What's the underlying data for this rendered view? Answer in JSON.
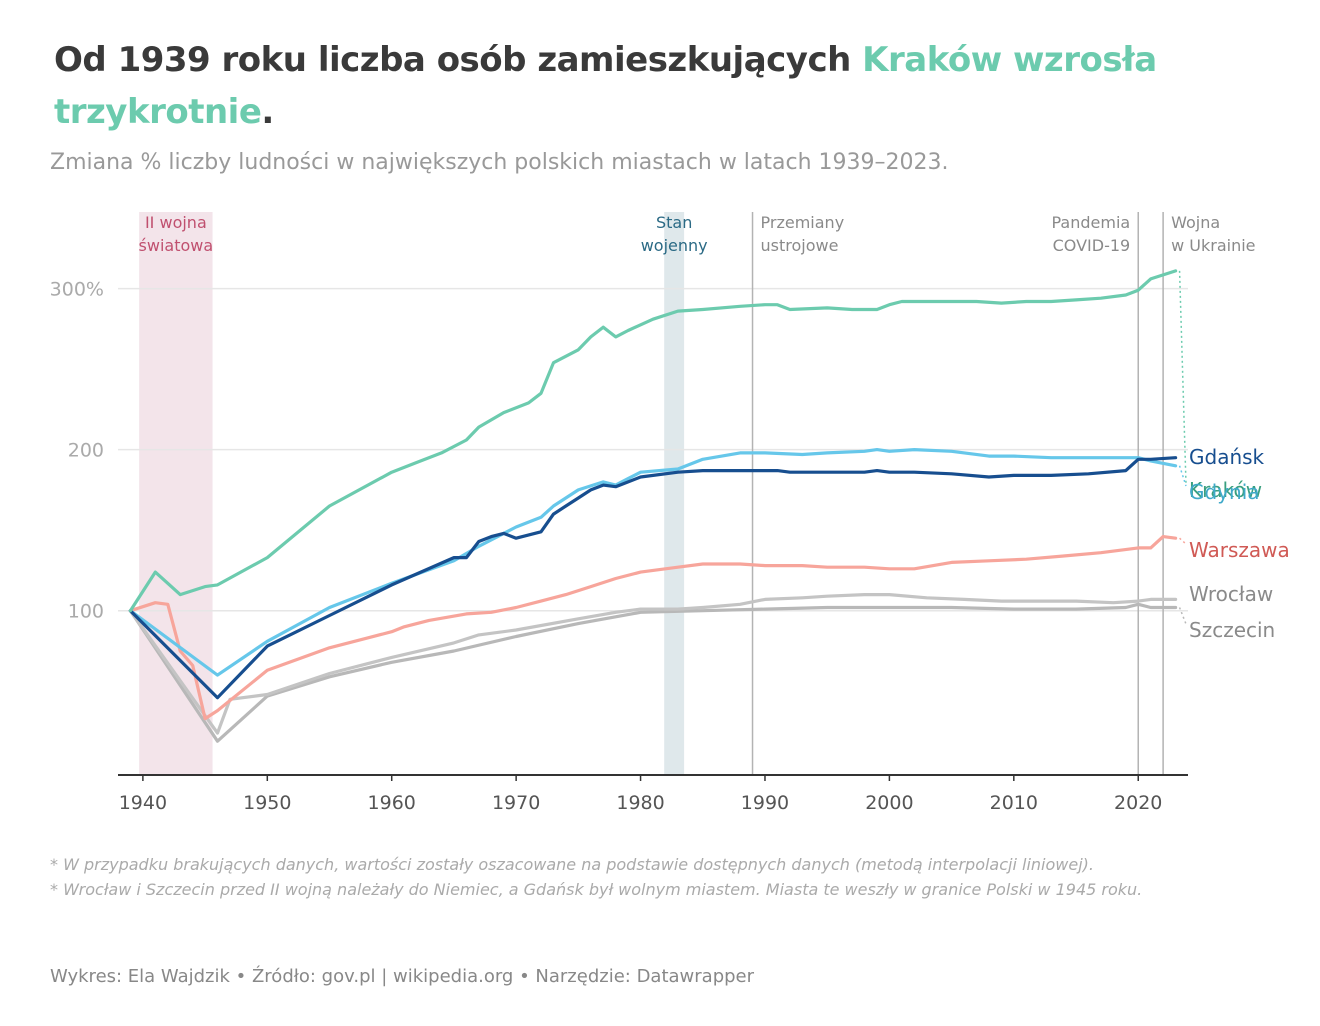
{
  "title": {
    "part1": "Od 1939 roku liczba osób zamieszkujących ",
    "highlight": "Kraków wzrosła trzykrotnie",
    "part2": "."
  },
  "subtitle": "Zmiana % liczby ludności w największych polskich miastach w latach 1939–2023.",
  "notes": [
    "* W przypadku brakujących danych, wartości zostały oszacowane na podstawie dostępnych danych (metodą interpolacji liniowej).",
    "* Wrocław i Szczecin przed II wojną należały do Niemiec, a Gdańsk był wolnym miastem. Miasta te weszły w granice Polski w 1945 roku."
  ],
  "credits": "Wykres: Ela Wajdzik • Źródło: gov.pl | wikipedia.org • Narzędzie: Datawrapper",
  "colors": {
    "krakow": "#6ccbae",
    "gdansk": "#174e8f",
    "gdynia": "#66c7ea",
    "warszawa": "#f7a59b",
    "wroclaw": "#c4c4c4",
    "szczecin": "#b8b8b8",
    "war_band": "#f3e4ea",
    "martial_band": "#dfe8eb"
  },
  "chart_data": {
    "type": "line",
    "xlim": [
      1938,
      2024
    ],
    "ylim": [
      -2,
      355
    ],
    "x_ticks": [
      1940,
      1950,
      1960,
      1970,
      1980,
      1990,
      2000,
      2010,
      2020
    ],
    "x_tick_labels": [
      "1940",
      "1950",
      "1960",
      "1970",
      "1980",
      "1990",
      "2000",
      "2010",
      "2020"
    ],
    "y_ticks": [
      100,
      200,
      300
    ],
    "y_tick_labels": [
      "100",
      "200",
      "300%"
    ],
    "grid": true,
    "annotations": {
      "ranges": [
        {
          "from": 1939.7,
          "to": 1945.6,
          "label": [
            "II wojna",
            "światowa"
          ],
          "color": "#c0506f"
        },
        {
          "from": 1981.9,
          "to": 1983.5,
          "label": [
            "Stan",
            "wojenny"
          ],
          "color": "#2b6a85"
        }
      ],
      "lines": [
        {
          "x": 1989,
          "label": [
            "Przemiany",
            "ustrojowe"
          ]
        },
        {
          "x": 2020,
          "label": [
            "Pandemia",
            "COVID-19"
          ]
        },
        {
          "x": 2022,
          "label": [
            "Wojna",
            "w Ukrainie"
          ]
        }
      ]
    },
    "series": [
      {
        "name": "Kraków",
        "key": "krakow",
        "x": [
          1939,
          1941,
          1943,
          1945,
          1946,
          1950,
          1955,
          1960,
          1962,
          1964,
          1966,
          1967,
          1969,
          1971,
          1972,
          1973,
          1975,
          1976,
          1977,
          1978,
          1979,
          1981,
          1983,
          1985,
          1988,
          1990,
          1991,
          1992,
          1995,
          1997,
          1999,
          2000,
          2001,
          2003,
          2005,
          2007,
          2009,
          2011,
          2013,
          2015,
          2017,
          2019,
          2020,
          2021,
          2023
        ],
        "y": [
          100,
          124,
          110,
          115,
          116,
          133,
          165,
          186,
          192,
          198,
          206,
          214,
          223,
          229,
          235,
          254,
          262,
          270,
          276,
          270,
          274,
          281,
          286,
          287,
          289,
          290,
          290,
          287,
          288,
          287,
          287,
          290,
          292,
          292,
          292,
          292,
          291,
          292,
          292,
          293,
          294,
          296,
          299,
          306,
          311
        ]
      },
      {
        "name": "Gdańsk",
        "key": "gdansk",
        "x": [
          1939,
          1946,
          1950,
          1955,
          1960,
          1965,
          1966,
          1967,
          1968,
          1969,
          1970,
          1972,
          1973,
          1974,
          1975,
          1976,
          1977,
          1978,
          1980,
          1983,
          1985,
          1988,
          1990,
          1991,
          1992,
          1995,
          1998,
          1999,
          2000,
          2002,
          2005,
          2008,
          2010,
          2013,
          2016,
          2019,
          2020,
          2021,
          2023
        ],
        "y": [
          100,
          46,
          78,
          97,
          116,
          133,
          133,
          143,
          146,
          148,
          145,
          149,
          160,
          165,
          170,
          175,
          178,
          177,
          183,
          186,
          187,
          187,
          187,
          187,
          186,
          186,
          186,
          187,
          186,
          186,
          185,
          183,
          184,
          184,
          185,
          187,
          194,
          194,
          195
        ]
      },
      {
        "name": "Gdynia",
        "key": "gdynia",
        "x": [
          1939,
          1946,
          1950,
          1955,
          1960,
          1965,
          1967,
          1969,
          1970,
          1972,
          1973,
          1975,
          1977,
          1978,
          1979,
          1980,
          1983,
          1985,
          1988,
          1990,
          1993,
          1995,
          1998,
          1999,
          2000,
          2002,
          2005,
          2008,
          2010,
          2013,
          2016,
          2019,
          2020,
          2021,
          2023
        ],
        "y": [
          100,
          60,
          81,
          102,
          117,
          131,
          140,
          148,
          152,
          158,
          165,
          175,
          180,
          178,
          182,
          186,
          188,
          194,
          198,
          198,
          197,
          198,
          199,
          200,
          199,
          200,
          199,
          196,
          196,
          195,
          195,
          195,
          195,
          193,
          190
        ]
      },
      {
        "name": "Warszawa",
        "key": "warszawa",
        "x": [
          1939,
          1941,
          1942,
          1943,
          1944,
          1945,
          1946,
          1950,
          1955,
          1960,
          1961,
          1963,
          1966,
          1968,
          1970,
          1972,
          1974,
          1976,
          1978,
          1980,
          1983,
          1985,
          1988,
          1990,
          1993,
          1995,
          1998,
          2000,
          2002,
          2005,
          2008,
          2011,
          2014,
          2017,
          2020,
          2021,
          2022,
          2023
        ],
        "y": [
          100,
          105,
          104,
          75,
          66,
          33,
          38,
          63,
          77,
          87,
          90,
          94,
          98,
          99,
          102,
          106,
          110,
          115,
          120,
          124,
          127,
          129,
          129,
          128,
          128,
          127,
          127,
          126,
          126,
          130,
          131,
          132,
          134,
          136,
          139,
          139,
          146,
          145
        ]
      },
      {
        "name": "Wrocław",
        "key": "wroclaw",
        "x": [
          1939,
          1946,
          1947,
          1950,
          1955,
          1960,
          1965,
          1967,
          1970,
          1975,
          1978,
          1980,
          1983,
          1985,
          1988,
          1990,
          1993,
          1995,
          1998,
          2000,
          2003,
          2006,
          2009,
          2012,
          2015,
          2018,
          2020,
          2021,
          2023
        ],
        "y": [
          100,
          24,
          45,
          48,
          61,
          71,
          80,
          85,
          88,
          95,
          99,
          101,
          101,
          102,
          104,
          107,
          108,
          109,
          110,
          110,
          108,
          107,
          106,
          106,
          106,
          105,
          106,
          107,
          107
        ]
      },
      {
        "name": "Szczecin",
        "key": "szczecin",
        "x": [
          1939,
          1946,
          1950,
          1955,
          1960,
          1965,
          1970,
          1975,
          1980,
          1985,
          1990,
          1995,
          2000,
          2005,
          2010,
          2015,
          2019,
          2020,
          2021,
          2023
        ],
        "y": [
          100,
          19,
          47,
          59,
          68,
          75,
          84,
          92,
          99,
          100,
          101,
          102,
          102,
          102,
          101,
          101,
          102,
          104,
          102,
          102
        ]
      }
    ]
  }
}
